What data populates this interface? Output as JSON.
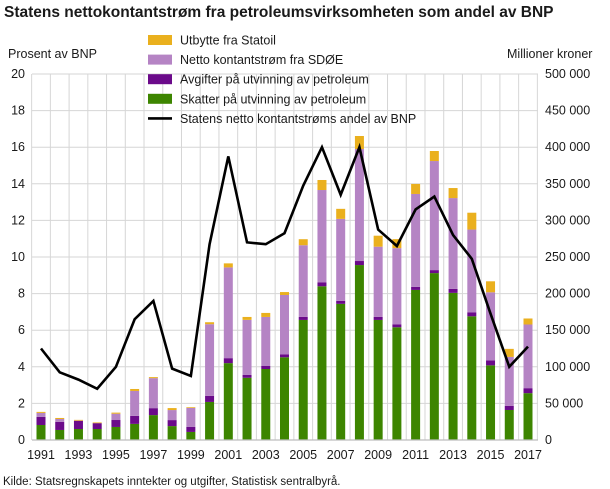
{
  "chart_data": {
    "type": "bar",
    "stacked": true,
    "title": "Statens nettokontantstrøm fra petroleumsvirksomheten som andel av BNP",
    "ylabel_left": "Prosent av BNP",
    "ylabel_right": "Millioner kroner",
    "source": "Kilde: Statsregnskapets inntekter og utgifter, Statistisk sentralbyrå.",
    "ylim_left": [
      0,
      20
    ],
    "ylim_right": [
      0,
      500000
    ],
    "yticks_left": [
      "0",
      "2",
      "4",
      "6",
      "8",
      "10",
      "12",
      "14",
      "16",
      "18",
      "20"
    ],
    "yticks_right": [
      "0",
      "50 000",
      "100 000",
      "150 000",
      "200 000",
      "250 000",
      "300 000",
      "350 000",
      "400 000",
      "450 000",
      "500 000"
    ],
    "grid": true,
    "legend_position": "top",
    "categories": [
      "1991",
      "1992",
      "1993",
      "1994",
      "1995",
      "1996",
      "1997",
      "1998",
      "1999",
      "2000",
      "2001",
      "2002",
      "2003",
      "2004",
      "2005",
      "2006",
      "2007",
      "2008",
      "2009",
      "2010",
      "2011",
      "2012",
      "2013",
      "2014",
      "2015",
      "2016",
      "2017"
    ],
    "xtick_labels": [
      "1991",
      "1993",
      "1995",
      "1997",
      "1999",
      "2001",
      "2003",
      "2005",
      "2007",
      "2009",
      "2011",
      "2013",
      "2015",
      "2017"
    ],
    "series": [
      {
        "name": "Skatter på utvinning av petroleum",
        "axis": "right",
        "color": "#3d8500",
        "values": [
          20500,
          13700,
          15000,
          15000,
          17800,
          22000,
          34000,
          19000,
          11000,
          52000,
          105000,
          85000,
          97000,
          113000,
          164000,
          210000,
          186000,
          239000,
          164000,
          154000,
          205000,
          228000,
          201000,
          169000,
          102000,
          41000,
          64000
        ]
      },
      {
        "name": "Avgifter på utvinning av petroleum",
        "axis": "right",
        "color": "#6b0a8a",
        "values": [
          11000,
          11000,
          11000,
          8000,
          9500,
          11000,
          9500,
          8200,
          6800,
          8200,
          6800,
          4100,
          4100,
          4100,
          4100,
          5500,
          4100,
          5500,
          4100,
          4100,
          4100,
          4100,
          5500,
          5500,
          6800,
          5500,
          6800
        ]
      },
      {
        "name": "Netto kontantstrøm fra SDØE",
        "axis": "right",
        "color": "#b584c4",
        "values": [
          5500,
          4000,
          500,
          0,
          8600,
          34000,
          41000,
          13700,
          26000,
          98000,
          124000,
          75000,
          67000,
          81000,
          98000,
          126000,
          112000,
          153000,
          96000,
          104000,
          127000,
          149000,
          124000,
          113000,
          93000,
          67000,
          87000
        ]
      },
      {
        "name": "Utbytte fra Statoil",
        "axis": "right",
        "color": "#eab01e",
        "values": [
          1400,
          1400,
          1000,
          1000,
          1500,
          2700,
          1400,
          2700,
          1000,
          2700,
          5500,
          4000,
          5500,
          4000,
          8200,
          13700,
          13700,
          17800,
          15000,
          12300,
          13700,
          13700,
          13700,
          23000,
          15000,
          11000,
          8200
        ]
      },
      {
        "name": "Statens netto kontantstrøms andel av BNP",
        "axis": "left",
        "type": "line",
        "color": "#000000",
        "values": [
          5.0,
          3.7,
          3.3,
          2.8,
          4.0,
          6.6,
          7.6,
          3.9,
          3.5,
          10.7,
          15.5,
          10.8,
          10.7,
          11.3,
          13.9,
          16.0,
          13.4,
          16.0,
          11.5,
          10.6,
          12.6,
          13.3,
          11.2,
          9.9,
          6.9,
          4.0,
          5.1
        ]
      }
    ],
    "legend_order": [
      3,
      2,
      1,
      0,
      4
    ]
  }
}
